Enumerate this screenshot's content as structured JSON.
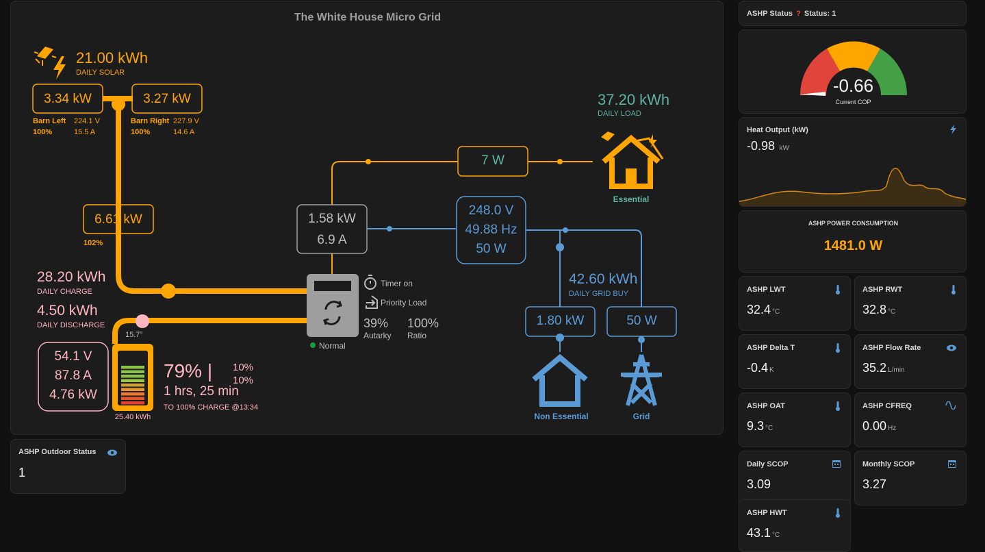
{
  "grid_card": {
    "title": "The White House Micro Grid",
    "solar": {
      "daily_value": "21.00 kWh",
      "daily_label": "DAILY SOLAR",
      "pv1": {
        "power": "3.34 kW",
        "name": "Barn Left",
        "voltage": "224.1 V",
        "percent": "100%",
        "current": "15.5 A"
      },
      "pv2": {
        "power": "3.27 kW",
        "name": "Barn Right",
        "voltage": "227.9 V",
        "percent": "100%",
        "current": "14.6 A"
      },
      "total_power": "6.61 kW",
      "total_percent": "102%"
    },
    "battery": {
      "daily_charge": "28.20 kWh",
      "daily_charge_label": "DAILY CHARGE",
      "daily_discharge": "4.50 kWh",
      "daily_discharge_label": "DAILY DISCHARGE",
      "voltage": "54.1 V",
      "current": "87.8 A",
      "power": "4.76 kW",
      "temp": "15.7°",
      "capacity": "25.40 kWh",
      "soc": "79% |",
      "soc_level": 0.79,
      "min1": "10%",
      "min2": "10%",
      "time": "1 hrs, 25 min",
      "charge_note": "TO 100% CHARGE @13:34"
    },
    "inverter": {
      "power": "1.58 kW",
      "current": "6.9 A",
      "status": "Normal",
      "timer": "Timer on",
      "priority": "Priority Load",
      "autarky_value": "39%",
      "autarky_label": "Autarky",
      "ratio_value": "100%",
      "ratio_label": "Ratio"
    },
    "load": {
      "daily_value": "37.20 kWh",
      "daily_label": "DAILY LOAD",
      "essential_power": "7 W",
      "essential_label": "Essential"
    },
    "grid": {
      "voltage": "248.0 V",
      "frequency": "49.88 Hz",
      "power": "50 W",
      "daily_buy": "42.60 kWh",
      "daily_buy_label": "DAILY GRID BUY",
      "non_essential_power": "1.80 kW",
      "grid_power": "50 W",
      "non_essential_label": "Non Essential",
      "grid_label": "Grid"
    }
  },
  "outdoor_status": {
    "title": "ASHP Outdoor Status",
    "value": "1",
    "icon": "eye-icon"
  },
  "ashp_status": {
    "title": "ASHP Status",
    "icon": "question-icon",
    "status": "Status: 1"
  },
  "gauge": {
    "value": "-0.66",
    "label": "Current COP",
    "level": 0.0,
    "colors": {
      "low": "#e0443a",
      "mid": "#ffa500",
      "high": "#43a047"
    }
  },
  "heat_output": {
    "title": "Heat Output (kW)",
    "value": "-0.98",
    "unit": "kW",
    "icon": "flash-icon"
  },
  "power_consumption": {
    "title": "ASHP POWER CONSUMPTION",
    "value": "1481.0 W"
  },
  "tiles": [
    {
      "title": "ASHP LWT",
      "value": "32.4",
      "unit": "°C",
      "icon": "thermometer-icon"
    },
    {
      "title": "ASHP RWT",
      "value": "32.8",
      "unit": "°C",
      "icon": "thermometer-icon"
    },
    {
      "title": "ASHP Delta T",
      "value": "-0.4",
      "unit": "K",
      "icon": "thermometer-icon"
    },
    {
      "title": "ASHP Flow Rate",
      "value": "35.2",
      "unit": "L/min",
      "icon": "eye-icon"
    },
    {
      "title": "ASHP OAT",
      "value": "9.3",
      "unit": "°C",
      "icon": "thermometer-icon"
    },
    {
      "title": "ASHP CFREQ",
      "value": "0.00",
      "unit": "Hz",
      "icon": "sine-wave-icon"
    },
    {
      "title": "Daily SCOP",
      "value": "3.09",
      "unit": "",
      "icon": "calendar-icon"
    },
    {
      "title": "Monthly SCOP",
      "value": "3.27",
      "unit": "",
      "icon": "calendar-icon"
    },
    {
      "title": "ASHP HWT",
      "value": "43.1",
      "unit": "°C",
      "icon": "thermometer-icon"
    }
  ]
}
